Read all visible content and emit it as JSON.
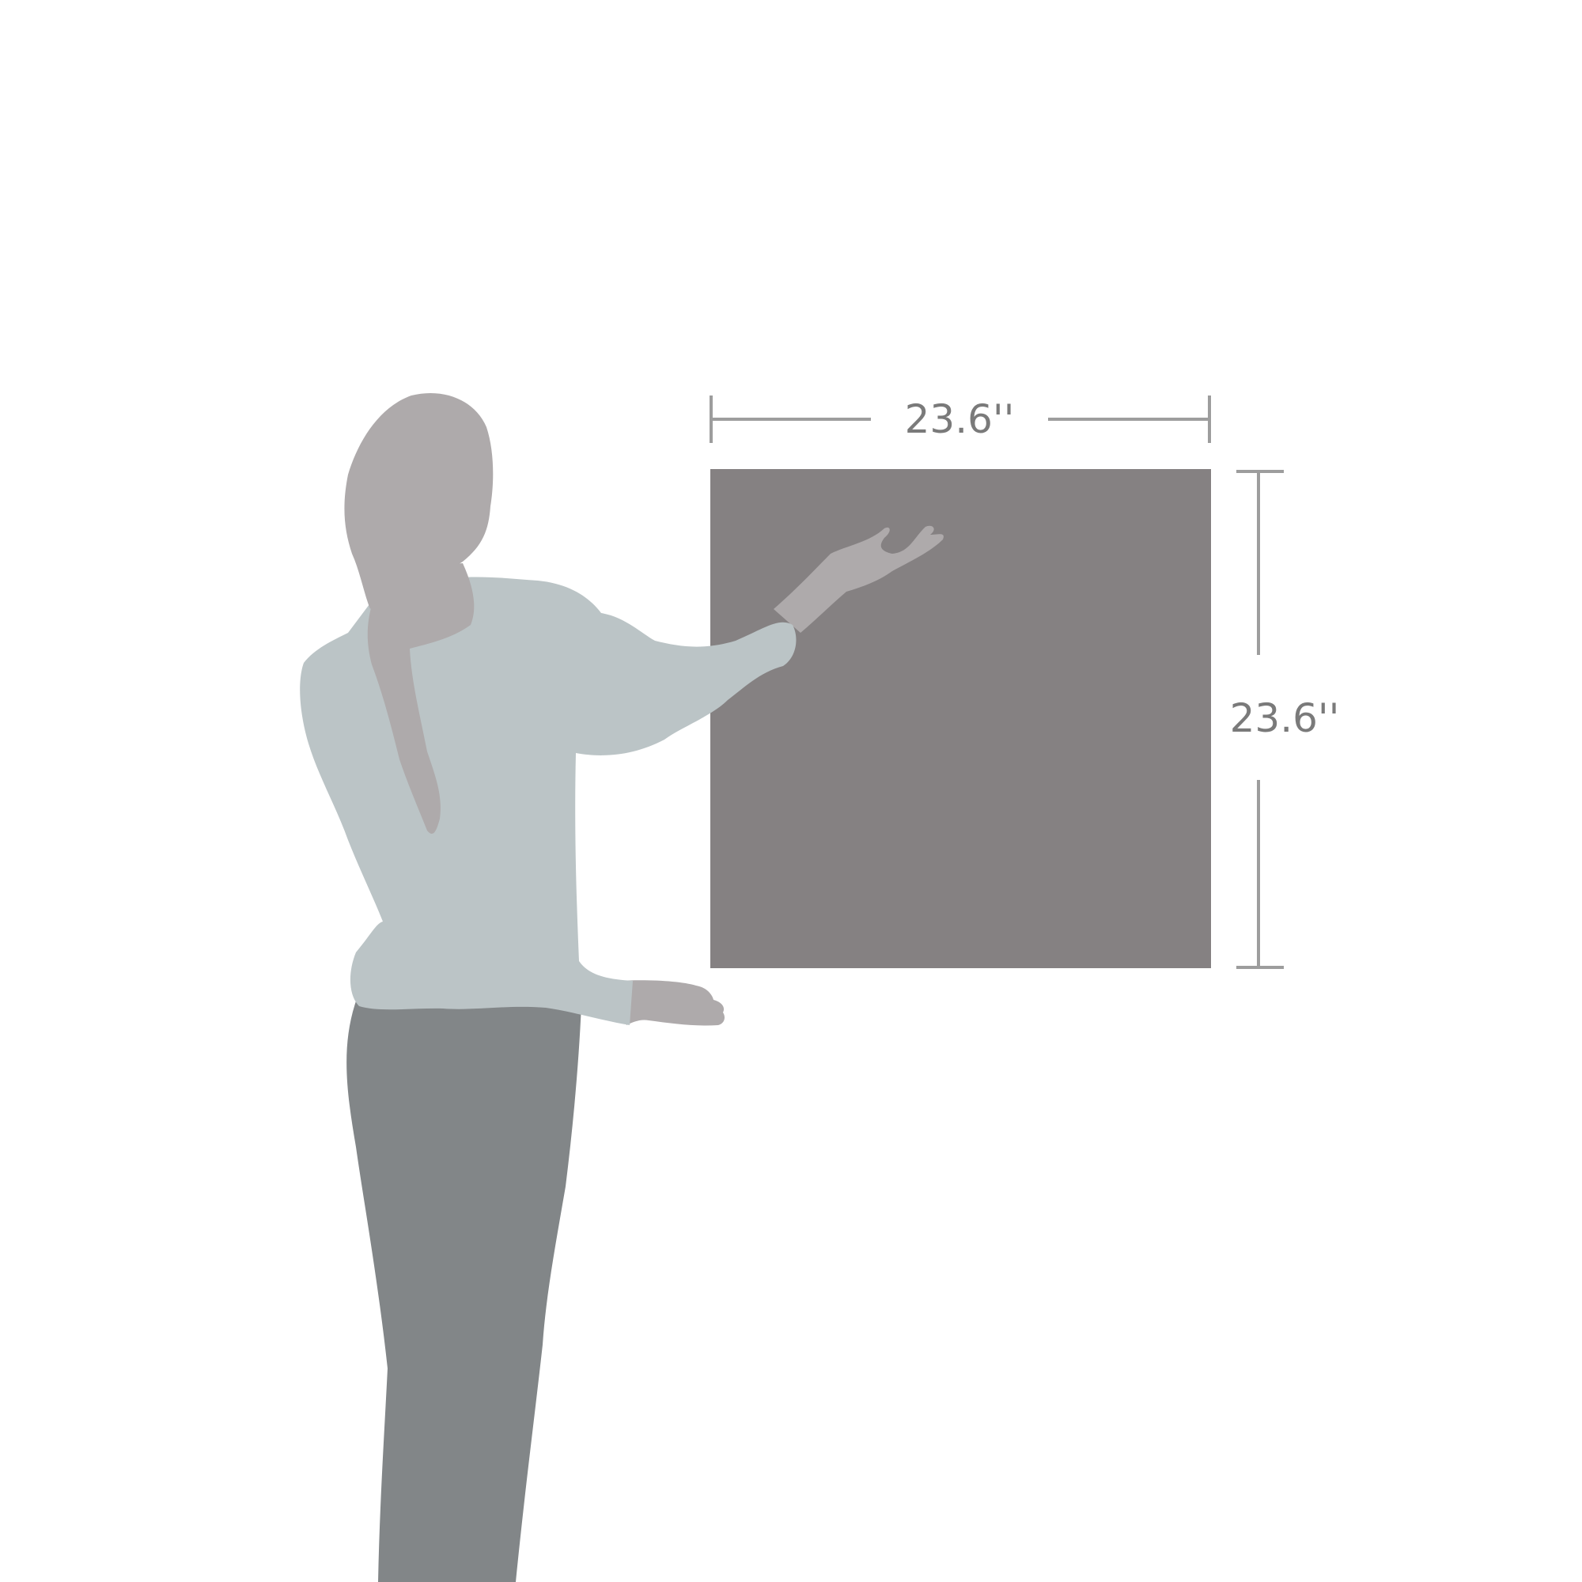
{
  "dimensions": {
    "width_label": "23.6''",
    "height_label": "23.6''"
  },
  "colors": {
    "background": "#ffffff",
    "panel": "#858182",
    "dimension_line": "#9d9d9d",
    "dimension_text": "#7a7a7a",
    "skin": "#aeaaab",
    "sweater": "#bbc4c6",
    "pants": "#828688"
  },
  "icons": {
    "figure": "person-silhouette-icon"
  }
}
